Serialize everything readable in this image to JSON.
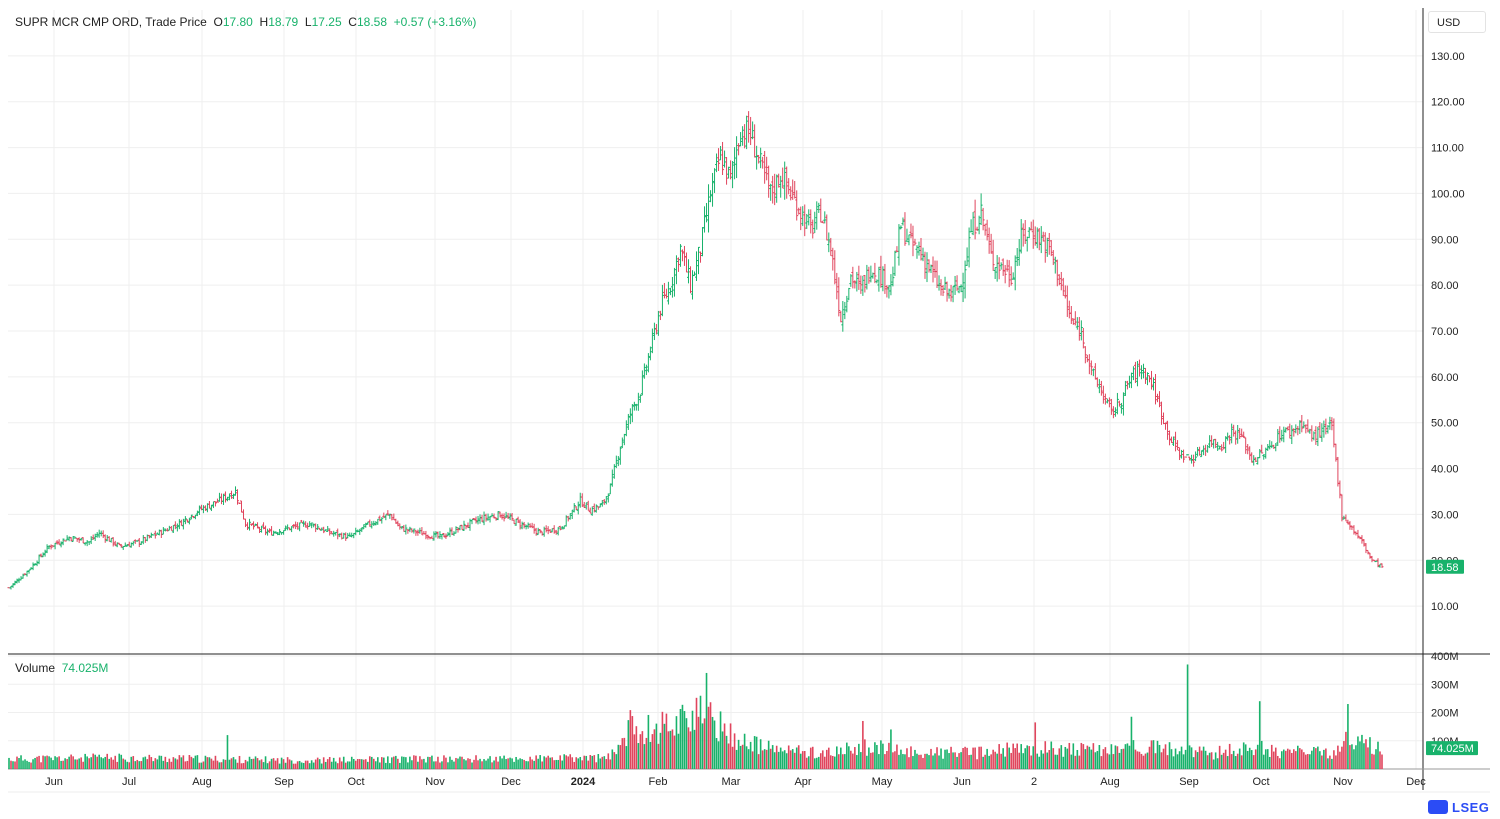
{
  "header": {
    "name": "SUPR MCR CMP ORD, Trade Price",
    "o_label": "O",
    "o_value": "17.80",
    "h_label": "H",
    "h_value": "18.79",
    "l_label": "L",
    "l_value": "17.25",
    "c_label": "C",
    "c_value": "18.58",
    "change": "+0.57 (+3.16%)"
  },
  "currency": "USD",
  "volume": {
    "label": "Volume",
    "value": "74.025M"
  },
  "logo": {
    "text": "LSEG"
  },
  "colors": {
    "up": "#18b26b",
    "down": "#e0455d",
    "grid": "#efefef",
    "axis": "#222222"
  },
  "chart_data": {
    "type": "ohlc",
    "price_axis": {
      "ylim": [
        0,
        140
      ],
      "ticks": [
        "10.00",
        "20.00",
        "30.00",
        "40.00",
        "50.00",
        "60.00",
        "70.00",
        "80.00",
        "90.00",
        "100.00",
        "110.00",
        "120.00",
        "130.00"
      ],
      "last_price_label": "18.58"
    },
    "volume_axis": {
      "ylim": [
        0,
        400
      ],
      "ticks": [
        "100M",
        "200M",
        "300M",
        "400M"
      ],
      "last_volume_label": "74.025M"
    },
    "x_axis_labels": [
      "Jun",
      "Jul",
      "Aug",
      "Sep",
      "Oct",
      "Nov",
      "Dec",
      "2024",
      "Feb",
      "Mar",
      "Apr",
      "May",
      "Jun",
      "2",
      "Aug",
      "Sep",
      "Oct",
      "Nov",
      "Dec"
    ],
    "x_axis_bold": "2024",
    "close_path": [
      [
        0,
        14
      ],
      [
        10,
        18
      ],
      [
        20,
        23
      ],
      [
        30,
        25
      ],
      [
        40,
        24
      ],
      [
        45,
        26
      ],
      [
        55,
        23
      ],
      [
        65,
        24
      ],
      [
        75,
        26
      ],
      [
        85,
        28
      ],
      [
        95,
        31
      ],
      [
        105,
        33
      ],
      [
        113,
        35
      ],
      [
        118,
        28
      ],
      [
        130,
        26
      ],
      [
        140,
        27
      ],
      [
        150,
        28
      ],
      [
        160,
        26
      ],
      [
        170,
        25
      ],
      [
        180,
        28
      ],
      [
        190,
        30
      ],
      [
        195,
        27
      ],
      [
        205,
        26
      ],
      [
        215,
        25
      ],
      [
        225,
        27
      ],
      [
        235,
        29
      ],
      [
        245,
        30
      ],
      [
        255,
        28
      ],
      [
        265,
        26
      ],
      [
        275,
        27
      ],
      [
        285,
        33
      ],
      [
        290,
        31
      ],
      [
        296,
        32
      ],
      [
        300,
        36
      ],
      [
        305,
        45
      ],
      [
        310,
        52
      ],
      [
        315,
        57
      ],
      [
        320,
        66
      ],
      [
        325,
        75
      ],
      [
        330,
        80
      ],
      [
        335,
        88
      ],
      [
        340,
        80
      ],
      [
        345,
        88
      ],
      [
        350,
        100
      ],
      [
        355,
        108
      ],
      [
        360,
        103
      ],
      [
        365,
        114
      ],
      [
        370,
        113
      ],
      [
        375,
        106
      ],
      [
        380,
        100
      ],
      [
        385,
        104
      ],
      [
        390,
        100
      ],
      [
        395,
        96
      ],
      [
        400,
        92
      ],
      [
        405,
        96
      ],
      [
        410,
        88
      ],
      [
        415,
        73
      ],
      [
        420,
        82
      ],
      [
        425,
        79
      ],
      [
        430,
        84
      ],
      [
        435,
        82
      ],
      [
        440,
        80
      ],
      [
        445,
        93
      ],
      [
        450,
        89
      ],
      [
        455,
        87
      ],
      [
        460,
        83
      ],
      [
        465,
        79
      ],
      [
        470,
        78
      ],
      [
        475,
        80
      ],
      [
        480,
        92
      ],
      [
        485,
        96
      ],
      [
        490,
        86
      ],
      [
        495,
        84
      ],
      [
        500,
        82
      ],
      [
        505,
        90
      ],
      [
        510,
        92
      ],
      [
        515,
        90
      ],
      [
        520,
        87
      ],
      [
        525,
        80
      ],
      [
        530,
        72
      ],
      [
        535,
        70
      ],
      [
        540,
        61
      ],
      [
        545,
        57
      ],
      [
        550,
        52
      ],
      [
        555,
        55
      ],
      [
        560,
        60
      ],
      [
        565,
        62
      ],
      [
        570,
        59
      ],
      [
        575,
        52
      ],
      [
        580,
        46
      ],
      [
        585,
        43
      ],
      [
        590,
        42
      ],
      [
        595,
        44
      ],
      [
        600,
        46
      ],
      [
        605,
        45
      ],
      [
        610,
        48
      ],
      [
        615,
        47
      ],
      [
        620,
        42
      ],
      [
        625,
        43
      ],
      [
        630,
        45
      ],
      [
        635,
        48
      ],
      [
        640,
        48
      ],
      [
        645,
        50
      ],
      [
        650,
        47
      ],
      [
        655,
        48
      ],
      [
        660,
        49
      ],
      [
        665,
        30
      ],
      [
        670,
        27
      ],
      [
        675,
        24
      ],
      [
        680,
        20
      ],
      [
        685,
        18.6
      ]
    ],
    "volume_path": [
      [
        0,
        35
      ],
      [
        50,
        40
      ],
      [
        100,
        35
      ],
      [
        150,
        30
      ],
      [
        200,
        35
      ],
      [
        250,
        35
      ],
      [
        300,
        40
      ],
      [
        310,
        150
      ],
      [
        320,
        140
      ],
      [
        330,
        160
      ],
      [
        340,
        200
      ],
      [
        350,
        180
      ],
      [
        360,
        120
      ],
      [
        365,
        100
      ],
      [
        370,
        90
      ],
      [
        380,
        70
      ],
      [
        390,
        65
      ],
      [
        400,
        60
      ],
      [
        410,
        55
      ],
      [
        420,
        70
      ],
      [
        430,
        80
      ],
      [
        440,
        65
      ],
      [
        450,
        60
      ],
      [
        460,
        55
      ],
      [
        470,
        60
      ],
      [
        480,
        55
      ],
      [
        490,
        60
      ],
      [
        500,
        70
      ],
      [
        510,
        65
      ],
      [
        520,
        75
      ],
      [
        530,
        70
      ],
      [
        540,
        65
      ],
      [
        550,
        70
      ],
      [
        560,
        80
      ],
      [
        570,
        75
      ],
      [
        580,
        70
      ],
      [
        590,
        60
      ],
      [
        600,
        55
      ],
      [
        610,
        65
      ],
      [
        620,
        80
      ],
      [
        630,
        65
      ],
      [
        640,
        60
      ],
      [
        650,
        60
      ],
      [
        660,
        50
      ],
      [
        665,
        100
      ],
      [
        670,
        100
      ],
      [
        680,
        80
      ],
      [
        685,
        74
      ]
    ],
    "volume_spikes": [
      [
        109,
        120
      ],
      [
        348,
        340
      ],
      [
        426,
        170
      ],
      [
        440,
        140
      ],
      [
        512,
        165
      ],
      [
        560,
        185
      ],
      [
        588,
        370
      ],
      [
        624,
        240
      ],
      [
        668,
        230
      ]
    ],
    "n_bars": 686
  }
}
